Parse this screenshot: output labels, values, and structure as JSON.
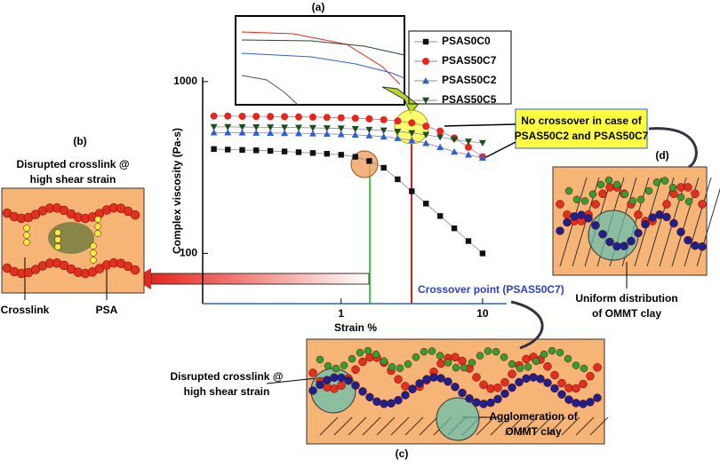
{
  "chart_data": {
    "type": "line",
    "title": "(a)",
    "xlabel": "Strain %",
    "ylabel": "Complex viscosity (Pa-s)",
    "log_x": true,
    "log_y": true,
    "xlim": [
      0.105,
      14.8
    ],
    "ylim": [
      51,
      1060
    ],
    "xticks": [
      1,
      10
    ],
    "yticks": [
      100,
      1000
    ],
    "x": [
      0.126,
      0.158,
      0.2,
      0.251,
      0.316,
      0.398,
      0.501,
      0.631,
      0.794,
      1,
      1.26,
      1.58,
      2,
      2.51,
      3.16,
      3.98,
      5.01,
      6.31,
      7.94,
      10
    ],
    "series": [
      {
        "name": "PSAS0C0",
        "color": "#111111",
        "marker": "square",
        "values": [
          405,
          402,
          400,
          398,
          395,
          392,
          388,
          384,
          380,
          375,
          365,
          345,
          315,
          270,
          230,
          195,
          165,
          140,
          118,
          100
        ]
      },
      {
        "name": "PSAS50C7",
        "color": "#e8241c",
        "marker": "circle",
        "values": [
          630,
          630,
          628,
          627,
          626,
          625,
          623,
          621,
          619,
          616,
          612,
          607,
          600,
          590,
          575,
          550,
          515,
          470,
          415,
          365
        ]
      },
      {
        "name": "PSAS50C2",
        "color": "#2f5fd8",
        "marker": "triangle-up",
        "values": [
          505,
          505,
          504,
          503,
          502,
          501,
          500,
          498,
          496,
          493,
          490,
          485,
          478,
          468,
          455,
          438,
          415,
          390,
          375,
          360
        ]
      },
      {
        "name": "PSAS50C5",
        "color": "#1f4d1f",
        "marker": "triangle-down",
        "values": [
          545,
          545,
          544,
          543,
          542,
          541,
          540,
          538,
          536,
          534,
          530,
          525,
          520,
          512,
          502,
          490,
          475,
          460,
          448,
          440
        ]
      }
    ],
    "annotations": {
      "crossover": "Crossover point (PSAS50C7)",
      "no_crossover": [
        "No crossover in case of",
        "PSAS50C2 and PSAS50C7"
      ]
    }
  },
  "panels": {
    "b": {
      "label": "(b)",
      "title": [
        "Disrupted crosslink @",
        "high shear strain"
      ],
      "crosslink": "Crosslink",
      "psa": "PSA"
    },
    "c": {
      "label": "(c)",
      "left": [
        "Disrupted crosslink @",
        "high shear strain"
      ],
      "right": [
        "Agglomeration of",
        "OMMT clay"
      ]
    },
    "d": {
      "label": "(d)",
      "caption": [
        "Uniform distribution",
        "of OMMT clay"
      ]
    }
  }
}
